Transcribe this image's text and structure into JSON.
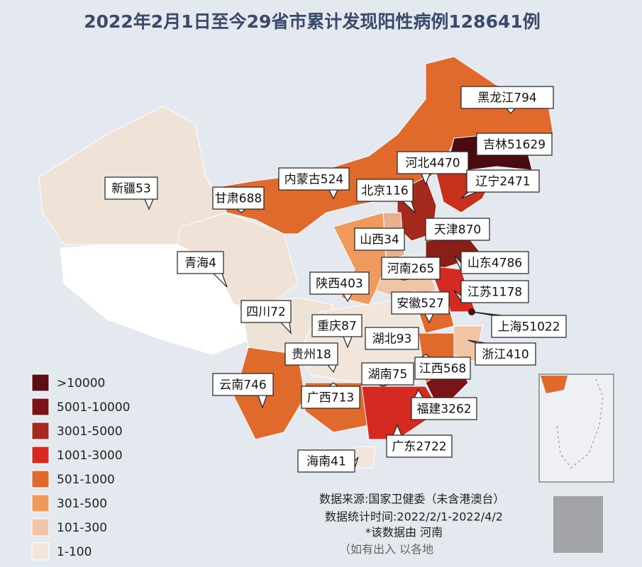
{
  "title": "2022年2月1日至今29省市累计发现阳性病例128641例",
  "provinces": [
    {
      "name": "黑龙江",
      "value": 794
    },
    {
      "name": "吉林",
      "value": 51629
    },
    {
      "name": "河北",
      "value": 4470
    },
    {
      "name": "辽宁",
      "value": 2471
    },
    {
      "name": "内蒙古",
      "value": 524
    },
    {
      "name": "北京",
      "value": 116
    },
    {
      "name": "甘肃",
      "value": 688
    },
    {
      "name": "新疆",
      "value": 53
    },
    {
      "name": "天津",
      "value": 870
    },
    {
      "name": "山西",
      "value": 34
    },
    {
      "name": "山东",
      "value": 4786
    },
    {
      "name": "青海",
      "value": 4
    },
    {
      "name": "河南",
      "value": 265
    },
    {
      "name": "陕西",
      "value": 403
    },
    {
      "name": "江苏",
      "value": 1178
    },
    {
      "name": "安徽",
      "value": 527
    },
    {
      "name": "四川",
      "value": 72
    },
    {
      "name": "上海",
      "value": 51022
    },
    {
      "name": "重庆",
      "value": 87
    },
    {
      "name": "湖北",
      "value": 93
    },
    {
      "name": "浙江",
      "value": 410
    },
    {
      "name": "贵州",
      "value": 18
    },
    {
      "name": "江西",
      "value": 568
    },
    {
      "name": "湖南",
      "value": 75
    },
    {
      "name": "云南",
      "value": 746
    },
    {
      "name": "广西",
      "value": 713
    },
    {
      "name": "福建",
      "value": 3262
    },
    {
      "name": "广东",
      "value": 2722
    },
    {
      "name": "海南",
      "value": 41
    }
  ],
  "legend": [
    {
      "label": ">10000",
      "color": "#5a0f14"
    },
    {
      "label": "5001-10000",
      "color": "#7a1418"
    },
    {
      "label": "3001-5000",
      "color": "#a52a1e"
    },
    {
      "label": "1001-3000",
      "color": "#d42a22"
    },
    {
      "label": "501-1000",
      "color": "#e06a2c"
    },
    {
      "label": "301-500",
      "color": "#ef9a5c"
    },
    {
      "label": "101-300",
      "color": "#f2c4a6"
    },
    {
      "label": "1-100",
      "color": "#f2e6dc"
    }
  ],
  "footer": [
    "数据来源:国家卫健委（未含港澳台）",
    "数据统计时间:2022/2/1-2022/4/2",
    "*该数据由 河南",
    "（如有出入 以各地"
  ]
}
